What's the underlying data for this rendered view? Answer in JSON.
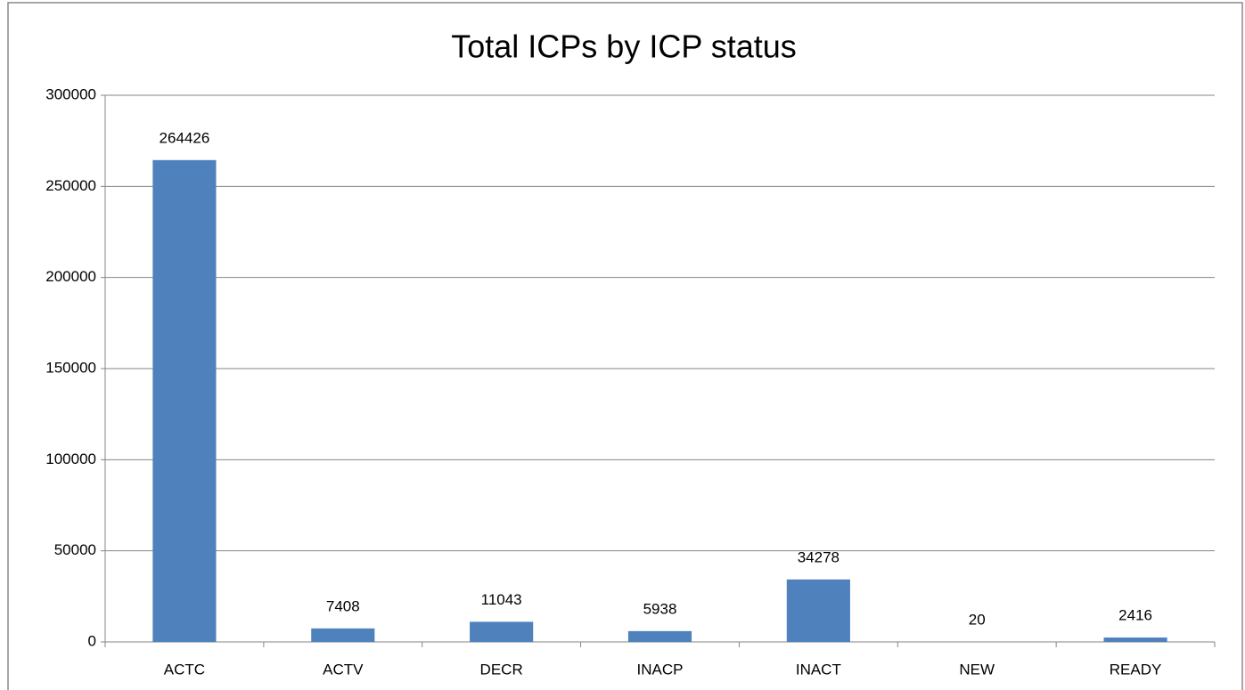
{
  "chart_data": {
    "type": "bar",
    "title": "Total ICPs by ICP status",
    "categories": [
      "ACTC",
      "ACTV",
      "DECR",
      "INACP",
      "INACT",
      "NEW",
      "READY"
    ],
    "values": [
      264426,
      7408,
      11043,
      5938,
      34278,
      20,
      2416
    ],
    "color": "#4f81bd",
    "ylim": [
      0,
      300000
    ],
    "yticks": [
      0,
      50000,
      100000,
      150000,
      200000,
      250000,
      300000
    ],
    "grid": true
  }
}
